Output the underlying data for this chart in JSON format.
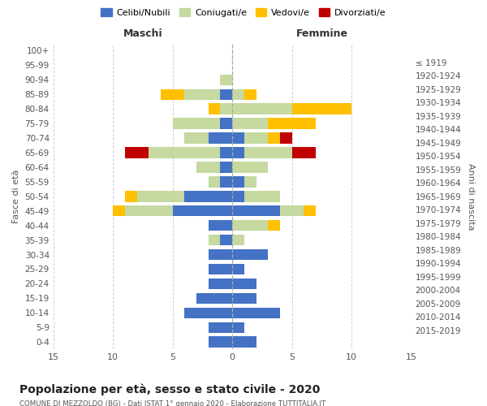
{
  "age_groups": [
    "0-4",
    "5-9",
    "10-14",
    "15-19",
    "20-24",
    "25-29",
    "30-34",
    "35-39",
    "40-44",
    "45-49",
    "50-54",
    "55-59",
    "60-64",
    "65-69",
    "70-74",
    "75-79",
    "80-84",
    "85-89",
    "90-94",
    "95-99",
    "100+"
  ],
  "birth_years": [
    "2015-2019",
    "2010-2014",
    "2005-2009",
    "2000-2004",
    "1995-1999",
    "1990-1994",
    "1985-1989",
    "1980-1984",
    "1975-1979",
    "1970-1974",
    "1965-1969",
    "1960-1964",
    "1955-1959",
    "1950-1954",
    "1945-1949",
    "1940-1944",
    "1935-1939",
    "1930-1934",
    "1925-1929",
    "1920-1924",
    "≤ 1919"
  ],
  "males": {
    "celibi": [
      2,
      2,
      4,
      3,
      2,
      2,
      2,
      1,
      2,
      5,
      4,
      1,
      1,
      1,
      2,
      1,
      0,
      1,
      0,
      0,
      0
    ],
    "coniugati": [
      0,
      0,
      0,
      0,
      0,
      0,
      0,
      1,
      0,
      4,
      4,
      1,
      2,
      6,
      2,
      4,
      1,
      3,
      1,
      0,
      0
    ],
    "vedovi": [
      0,
      0,
      0,
      0,
      0,
      0,
      0,
      0,
      0,
      1,
      1,
      0,
      0,
      0,
      0,
      0,
      1,
      2,
      0,
      0,
      0
    ],
    "divorziati": [
      0,
      0,
      0,
      0,
      0,
      0,
      0,
      0,
      0,
      0,
      0,
      0,
      0,
      2,
      0,
      0,
      0,
      0,
      0,
      0,
      0
    ]
  },
  "females": {
    "nubili": [
      2,
      1,
      4,
      2,
      2,
      1,
      3,
      0,
      0,
      4,
      1,
      1,
      0,
      1,
      1,
      0,
      0,
      0,
      0,
      0,
      0
    ],
    "coniugate": [
      0,
      0,
      0,
      0,
      0,
      0,
      0,
      1,
      3,
      2,
      3,
      1,
      3,
      4,
      2,
      3,
      5,
      1,
      0,
      0,
      0
    ],
    "vedove": [
      0,
      0,
      0,
      0,
      0,
      0,
      0,
      0,
      1,
      1,
      0,
      0,
      0,
      0,
      1,
      4,
      5,
      1,
      0,
      0,
      0
    ],
    "divorziate": [
      0,
      0,
      0,
      0,
      0,
      0,
      0,
      0,
      0,
      0,
      0,
      0,
      0,
      2,
      1,
      0,
      0,
      0,
      0,
      0,
      0
    ]
  },
  "colors": {
    "celibi_nubili": "#4472c4",
    "coniugati": "#c5d9a0",
    "vedovi": "#ffc000",
    "divorziati": "#c00000"
  },
  "xlim": 15,
  "title": "Popolazione per età, sesso e stato civile - 2020",
  "subtitle": "COMUNE DI MEZZOLDO (BG) - Dati ISTAT 1° gennaio 2020 - Elaborazione TUTTITALIA.IT",
  "ylabel_left": "Fasce di età",
  "ylabel_right": "Anni di nascita",
  "xlabel_left": "Maschi",
  "xlabel_right": "Femmine",
  "legend_labels": [
    "Celibi/Nubili",
    "Coniugati/e",
    "Vedovi/e",
    "Divorziati/e"
  ],
  "background_color": "#ffffff",
  "grid_color": "#cccccc"
}
